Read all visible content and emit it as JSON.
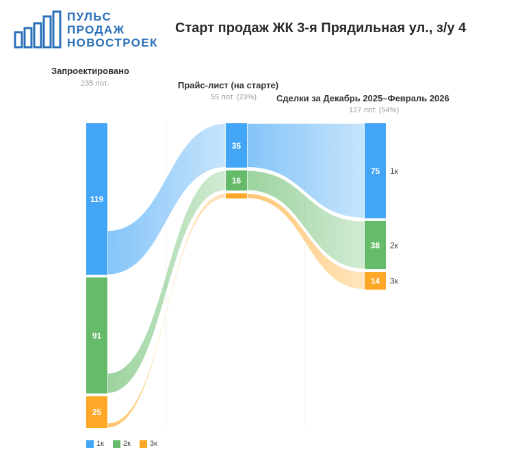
{
  "logo": {
    "lines": [
      "ПУЛЬС",
      "ПРОДАЖ",
      "НОВОСТРОЕК"
    ],
    "icon": "building-bars-logo",
    "color": "#2a6fb8"
  },
  "title": "Старт продаж ЖК 3-я Прядильная ул., з/у 4",
  "stages": [
    {
      "title": "Запроектировано",
      "subtitle": "235 лот."
    },
    {
      "title": "Прайс-лист (на старте)",
      "subtitle": "55 лот. (23%)"
    },
    {
      "title": "Сделки за Декабрь 2025–Февраль 2026",
      "subtitle": "127 лот. (54%)"
    }
  ],
  "legend": [
    {
      "label": "1к",
      "color": "#42a5f5"
    },
    {
      "label": "2к",
      "color": "#66bb6a"
    },
    {
      "label": "3к",
      "color": "#ffa726"
    }
  ],
  "chart_data": {
    "type": "sankey",
    "title": "Старт продаж ЖК 3-я Прядильная ул., з/у 4",
    "categories": [
      "1к",
      "2к",
      "3к"
    ],
    "colors": [
      "#42a5f5",
      "#66bb6a",
      "#ffa726"
    ],
    "stages": [
      {
        "name": "Запроектировано",
        "values": [
          119,
          91,
          25
        ],
        "labels": [
          "119",
          "91",
          "25"
        ]
      },
      {
        "name": "Прайс-лист (на старте)",
        "values": [
          35,
          16,
          4
        ],
        "labels": [
          "35",
          "16",
          ""
        ]
      },
      {
        "name": "Сделки за Декабрь 2025–Февраль 2026",
        "values": [
          75,
          38,
          14
        ],
        "labels": [
          "75",
          "38",
          "14"
        ]
      }
    ],
    "right_labels": [
      "1к",
      "2к",
      "3к"
    ]
  }
}
